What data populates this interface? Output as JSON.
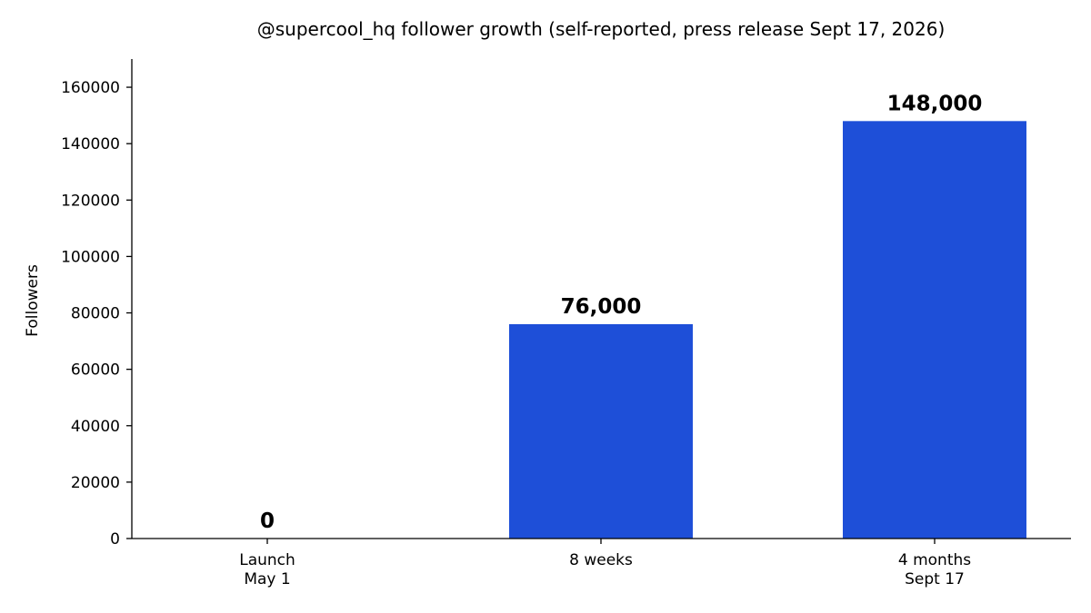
{
  "chart_data": {
    "type": "bar",
    "title": "@supercool_hq follower growth (self-reported, press release Sept 17, 2026)",
    "xlabel": "",
    "ylabel": "Followers",
    "categories": [
      [
        "Launch",
        "May 1"
      ],
      [
        "8 weeks"
      ],
      [
        "4 months",
        "Sept 17"
      ]
    ],
    "values": [
      0,
      76000,
      148000
    ],
    "data_labels": [
      "0",
      "76,000",
      "148,000"
    ],
    "ylim": [
      0,
      170000
    ],
    "yticks": [
      0,
      20000,
      40000,
      60000,
      80000,
      100000,
      120000,
      140000,
      160000
    ],
    "ytick_labels": [
      "0",
      "20000",
      "40000",
      "60000",
      "80000",
      "100000",
      "120000",
      "140000",
      "160000"
    ],
    "bar_color": "#1e4fd8",
    "grid": false,
    "legend": "none"
  }
}
